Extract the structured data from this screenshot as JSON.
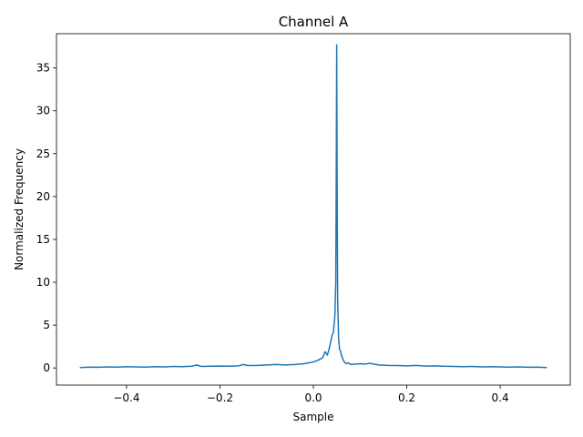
{
  "chart_data": {
    "type": "line",
    "title": "Channel A",
    "xlabel": "Sample",
    "ylabel": "Normalized Frequency",
    "xlim": [
      -0.55,
      0.55
    ],
    "ylim": [
      -2,
      39
    ],
    "x_ticks": [
      -0.4,
      -0.2,
      0.0,
      0.2,
      0.4
    ],
    "x_tick_labels": [
      "−0.4",
      "−0.2",
      "0.0",
      "0.2",
      "0.4"
    ],
    "y_ticks": [
      0,
      5,
      10,
      15,
      20,
      25,
      30,
      35
    ],
    "y_tick_labels": [
      "0",
      "5",
      "10",
      "15",
      "20",
      "25",
      "30",
      "35"
    ],
    "grid": false,
    "legend": "none",
    "series": [
      {
        "color": "#1f77b4",
        "x": [
          -0.5,
          -0.48,
          -0.46,
          -0.44,
          -0.42,
          -0.4,
          -0.38,
          -0.36,
          -0.34,
          -0.32,
          -0.3,
          -0.28,
          -0.26,
          -0.25,
          -0.24,
          -0.22,
          -0.2,
          -0.18,
          -0.16,
          -0.15,
          -0.14,
          -0.12,
          -0.1,
          -0.08,
          -0.06,
          -0.04,
          -0.02,
          0.0,
          0.01,
          0.02,
          0.025,
          0.03,
          0.035,
          0.04,
          0.043,
          0.046,
          0.048,
          0.049,
          0.05,
          0.051,
          0.052,
          0.054,
          0.056,
          0.058,
          0.06,
          0.065,
          0.07,
          0.075,
          0.08,
          0.09,
          0.1,
          0.11,
          0.12,
          0.14,
          0.16,
          0.18,
          0.2,
          0.22,
          0.24,
          0.26,
          0.28,
          0.3,
          0.32,
          0.34,
          0.36,
          0.38,
          0.4,
          0.42,
          0.44,
          0.46,
          0.48,
          0.5
        ],
        "y": [
          0.05,
          0.1,
          0.08,
          0.12,
          0.1,
          0.15,
          0.12,
          0.1,
          0.15,
          0.12,
          0.18,
          0.15,
          0.2,
          0.35,
          0.18,
          0.2,
          0.22,
          0.2,
          0.25,
          0.4,
          0.28,
          0.3,
          0.35,
          0.4,
          0.35,
          0.4,
          0.5,
          0.7,
          0.9,
          1.2,
          1.9,
          1.5,
          2.5,
          3.8,
          4.2,
          6.0,
          10.0,
          22.0,
          37.7,
          20.0,
          8.0,
          3.5,
          2.2,
          2.0,
          1.5,
          0.8,
          0.5,
          0.6,
          0.4,
          0.45,
          0.5,
          0.45,
          0.55,
          0.35,
          0.3,
          0.28,
          0.25,
          0.3,
          0.22,
          0.25,
          0.2,
          0.18,
          0.15,
          0.18,
          0.12,
          0.15,
          0.12,
          0.1,
          0.12,
          0.08,
          0.1,
          0.05
        ]
      }
    ]
  }
}
